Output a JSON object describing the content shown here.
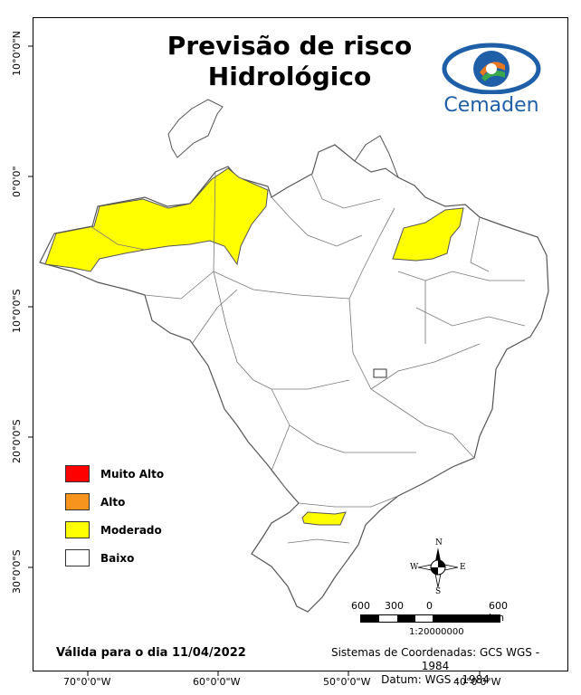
{
  "title": {
    "line1": "Previsão de risco",
    "line2": "Hidrológico"
  },
  "logo": {
    "text": "Cemaden",
    "colors": {
      "blue": "#1f5fa8",
      "orange": "#e87722",
      "green": "#3aa84b"
    }
  },
  "legend": {
    "items": [
      {
        "label": "Muito Alto",
        "color": "#ff0000"
      },
      {
        "label": "Alto",
        "color": "#f7941d"
      },
      {
        "label": "Moderado",
        "color": "#ffff00"
      },
      {
        "label": "Baixo",
        "color": "#ffffff"
      }
    ]
  },
  "graticule": {
    "lat_labels": [
      "10°0'0\"N",
      "0°0'0\"",
      "10°0'0\"S",
      "20°0'0\"S",
      "30°0'0\"S"
    ],
    "lon_labels": [
      "70°0'0\"W",
      "60°0'0\"W",
      "50°0'0\"W",
      "40°0'0\"W"
    ]
  },
  "validity": "Válida para o dia 11/04/2022",
  "coordinate_system": {
    "line1": "Sistemas de Coordenadas: GCS WGS - 1984",
    "line2": "Datum: WGS - 1984"
  },
  "scale_bar": {
    "labels": [
      "600",
      "300",
      "0",
      "600 km"
    ],
    "ratio": "1:20000000"
  },
  "north_arrow": {
    "n": "N",
    "s": "S",
    "e": "E",
    "w": "W"
  },
  "map": {
    "risk_areas": [
      {
        "name": "Amazonas (western)",
        "level": "Moderado"
      },
      {
        "name": "Maranhão",
        "level": "Moderado"
      },
      {
        "name": "Santa Catarina/Paraná border",
        "level": "Moderado"
      }
    ]
  }
}
